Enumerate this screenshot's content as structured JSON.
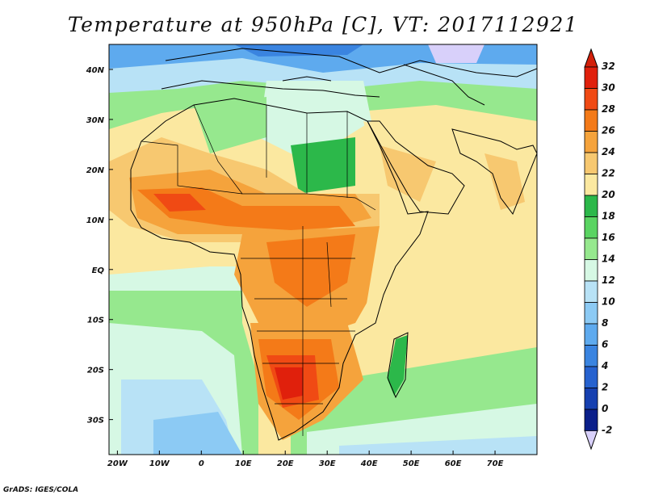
{
  "title": "Temperature at 950hPa [C], VT: 2017112921",
  "credit": "GrADS: IGES/COLA",
  "map": {
    "projection": "lat-lon",
    "lon_range": [
      -22,
      80
    ],
    "lat_range": [
      -37,
      45
    ],
    "lat_ticks": [
      {
        "value": 40,
        "label": "40N"
      },
      {
        "value": 30,
        "label": "30N"
      },
      {
        "value": 20,
        "label": "20N"
      },
      {
        "value": 10,
        "label": "10N"
      },
      {
        "value": 0,
        "label": "EQ"
      },
      {
        "value": -10,
        "label": "10S"
      },
      {
        "value": -20,
        "label": "20S"
      },
      {
        "value": -30,
        "label": "30S"
      }
    ],
    "lon_ticks": [
      {
        "value": -20,
        "label": "20W"
      },
      {
        "value": -10,
        "label": "10W"
      },
      {
        "value": 0,
        "label": "0"
      },
      {
        "value": 10,
        "label": "10E"
      },
      {
        "value": 20,
        "label": "20E"
      },
      {
        "value": 30,
        "label": "30E"
      },
      {
        "value": 40,
        "label": "40E"
      },
      {
        "value": 50,
        "label": "50E"
      },
      {
        "value": 60,
        "label": "60E"
      },
      {
        "value": 70,
        "label": "70E"
      }
    ]
  },
  "colorbar": {
    "labels": [
      "32",
      "30",
      "28",
      "26",
      "24",
      "22",
      "20",
      "18",
      "16",
      "14",
      "12",
      "10",
      "8",
      "6",
      "4",
      "2",
      "0",
      "-2"
    ],
    "colors": [
      "#e0200c",
      "#f04a14",
      "#f47a18",
      "#f5a33c",
      "#f7c870",
      "#fbe8a0",
      "#2cb84a",
      "#5ad462",
      "#96e88e",
      "#d6f8e4",
      "#b8e2f6",
      "#8ccaf4",
      "#5eaaee",
      "#3a84e0",
      "#2662cf",
      "#1640b0",
      "#0b1f8a"
    ],
    "top_cap_color": "#d3200a",
    "bottom_cap_color": "#d8d0fa"
  }
}
